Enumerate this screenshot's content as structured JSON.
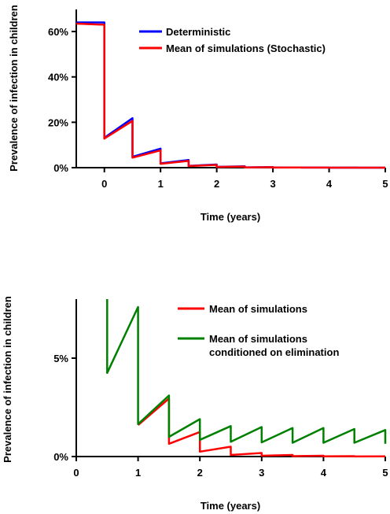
{
  "chart_data": [
    {
      "type": "line",
      "xlabel": "Time (years)",
      "ylabel": "Prevalence of infection in children",
      "xlim": [
        -0.5,
        5
      ],
      "ylim": [
        0,
        68
      ],
      "x_ticks": [
        0,
        1,
        2,
        3,
        4,
        5
      ],
      "x_tick_labels": [
        "0",
        "1",
        "2",
        "3",
        "4",
        "5"
      ],
      "y_ticks": [
        0,
        20,
        40,
        60
      ],
      "y_tick_labels": [
        "0%",
        "20%",
        "40%",
        "60%"
      ],
      "grid": false,
      "legend_position": "top-right",
      "series": [
        {
          "name": "Deterministic",
          "color": "#0000ff",
          "x": [
            -0.5,
            0,
            0,
            0.5,
            0.5,
            1,
            1,
            1.5,
            1.5,
            2,
            2,
            2.5,
            2.5,
            3,
            3,
            3.5,
            3.5,
            4,
            4,
            4.5,
            4.5,
            5
          ],
          "y": [
            64,
            64,
            13.2,
            21.8,
            4.8,
            8.4,
            1.9,
            3.4,
            0.8,
            1.4,
            0.35,
            0.6,
            0.15,
            0.25,
            0.06,
            0.1,
            0.02,
            0.04,
            0.01,
            0.02,
            0.005,
            0.01
          ]
        },
        {
          "name": "Mean of simulations (Stochastic)",
          "color": "#ff0000",
          "x": [
            -0.5,
            0,
            0,
            0.5,
            0.5,
            1,
            1,
            1.5,
            1.5,
            2,
            2,
            2.5,
            2.5,
            3,
            3,
            3.5,
            3.5,
            4,
            4,
            4.5,
            4.5,
            5
          ],
          "y": [
            63.5,
            63,
            12.8,
            20.6,
            4.4,
            7.6,
            1.7,
            3.0,
            0.7,
            1.2,
            0.3,
            0.5,
            0.1,
            0.2,
            0.05,
            0.08,
            0.02,
            0.03,
            0.01,
            0.01,
            0.004,
            0.008
          ]
        }
      ]
    },
    {
      "type": "line",
      "xlabel": "Time (years)",
      "ylabel": "Prevalence of infection in children",
      "xlim": [
        0,
        5
      ],
      "ylim": [
        0,
        8
      ],
      "x_ticks": [
        0,
        1,
        2,
        3,
        4,
        5
      ],
      "x_tick_labels": [
        "0",
        "1",
        "2",
        "3",
        "4",
        "5"
      ],
      "y_ticks": [
        0,
        5
      ],
      "y_tick_labels": [
        "0%",
        "5%"
      ],
      "grid": false,
      "legend_position": "top-right",
      "series": [
        {
          "name": "Mean of simulations",
          "color": "#ff0000",
          "x": [
            1,
            1.5,
            1.5,
            2,
            2,
            2.5,
            2.5,
            3,
            3,
            3.5,
            3.5,
            4,
            4,
            4.5,
            4.5,
            5
          ],
          "y": [
            1.6,
            2.95,
            0.65,
            1.25,
            0.25,
            0.5,
            0.08,
            0.18,
            0.04,
            0.08,
            0.02,
            0.04,
            0.01,
            0.02,
            0.005,
            0.01
          ]
        },
        {
          "name": "Mean of simulations\nconditioned on elimination",
          "color": "#008000",
          "x": [
            0.5,
            0.5,
            1,
            1,
            1.5,
            1.5,
            2,
            2,
            2.5,
            2.5,
            3,
            3,
            3.5,
            3.5,
            4,
            4,
            4.5,
            4.5,
            5,
            5
          ],
          "y": [
            8,
            4.25,
            7.6,
            1.65,
            3.1,
            1.0,
            1.9,
            0.85,
            1.55,
            0.75,
            1.5,
            0.72,
            1.45,
            0.7,
            1.45,
            0.7,
            1.4,
            0.7,
            1.35,
            0.65
          ]
        }
      ]
    }
  ],
  "legend_top": {
    "deterministic": "Deterministic",
    "stochastic": "Mean of simulations (Stochastic)"
  },
  "legend_bottom": {
    "simulations": "Mean of simulations",
    "conditioned_line1": "Mean of simulations",
    "conditioned_line2": "conditioned on elimination"
  },
  "labels": {
    "xlabel_top": "Time (years)",
    "ylabel_top": "Prevalence of infection in children",
    "xlabel_bottom": "Time (years)",
    "ylabel_bottom": "Prevalence of infection in children"
  }
}
